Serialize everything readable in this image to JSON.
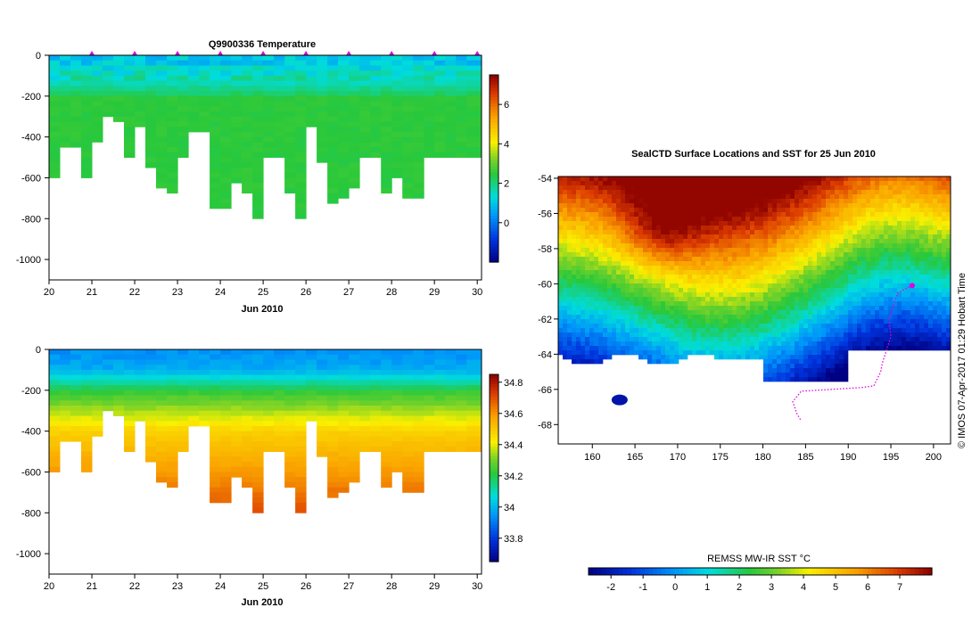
{
  "chart_data": [
    {
      "type": "heatmap",
      "title": "Q9900336  Temperature",
      "xlabel": "Jun 2010",
      "ylabel": "",
      "xlim": [
        20,
        30.1
      ],
      "ylim": [
        -1100,
        0
      ],
      "x_ticks": [
        "20",
        "21",
        "22",
        "23",
        "24",
        "25",
        "26",
        "27",
        "28",
        "29",
        "30"
      ],
      "y_ticks": [
        "0",
        "-200",
        "-400",
        "-600",
        "-800",
        "-1000"
      ],
      "colorbar": {
        "range": [
          -2,
          7.5
        ],
        "ticks": [
          "0",
          "2",
          "4",
          "6"
        ],
        "tick_values": [
          0,
          2,
          4,
          6
        ]
      },
      "profile_days": [
        20.0,
        20.25,
        20.5,
        20.75,
        21.0,
        21.25,
        21.5,
        21.75,
        22.0,
        22.25,
        22.5,
        22.75,
        23.0,
        23.25,
        23.5,
        23.75,
        24.0,
        24.25,
        24.5,
        24.75,
        25.0,
        25.25,
        25.5,
        25.75,
        26.0,
        26.25,
        26.5,
        26.75,
        27.0,
        27.25,
        27.5,
        27.75,
        28.0,
        28.25,
        28.5,
        28.75,
        29.0,
        29.25,
        29.5,
        29.75
      ],
      "profile_max_depth": [
        -590,
        -440,
        -440,
        -600,
        -420,
        -300,
        -310,
        -500,
        -340,
        -550,
        -640,
        -670,
        -500,
        -360,
        -360,
        -730,
        -730,
        -620,
        -670,
        -790,
        -480,
        -490,
        -660,
        -790,
        -340,
        -510,
        -710,
        -700,
        -640,
        -500,
        -500,
        -670,
        -600,
        -690,
        -690,
        -500,
        -500,
        -500,
        -500,
        -500
      ],
      "markers_days": [
        21,
        22,
        23,
        24,
        25,
        26,
        27,
        28,
        29,
        30
      ]
    },
    {
      "type": "heatmap",
      "title": "",
      "xlabel": "Jun 2010",
      "xlim": [
        20,
        30.1
      ],
      "ylim": [
        -1100,
        0
      ],
      "x_ticks": [
        "20",
        "21",
        "22",
        "23",
        "24",
        "25",
        "26",
        "27",
        "28",
        "29",
        "30"
      ],
      "y_ticks": [
        "0",
        "-200",
        "-400",
        "-600",
        "-800",
        "-1000"
      ],
      "colorbar": {
        "range": [
          33.65,
          34.85
        ],
        "ticks": [
          "33.8",
          "34",
          "34.2",
          "34.4",
          "34.6",
          "34.8"
        ],
        "tick_values": [
          33.8,
          34,
          34.2,
          34.4,
          34.6,
          34.8
        ]
      }
    },
    {
      "type": "heatmap",
      "title": "SealCTD Surface Locations and SST for 25 Jun 2010",
      "xlim": [
        156,
        202
      ],
      "ylim": [
        -69.1,
        -53.9
      ],
      "x_ticks": [
        "160",
        "165",
        "170",
        "175",
        "180",
        "185",
        "190",
        "195",
        "200"
      ],
      "y_ticks": [
        "-54",
        "-56",
        "-58",
        "-60",
        "-62",
        "-64",
        "-66",
        "-68"
      ],
      "colorbar": {
        "label": "REMSS MW-IR SST °C",
        "range": [
          -2.7,
          8.0
        ],
        "ticks": [
          "-2",
          "-1",
          "0",
          "1",
          "2",
          "3",
          "4",
          "5",
          "6",
          "7"
        ],
        "tick_values": [
          -2,
          -1,
          0,
          1,
          2,
          3,
          4,
          5,
          6,
          7
        ]
      },
      "track_color": "#e000e0"
    }
  ],
  "credit": "© IMOS 07-Apr-2017 01:29 Hobart Time"
}
